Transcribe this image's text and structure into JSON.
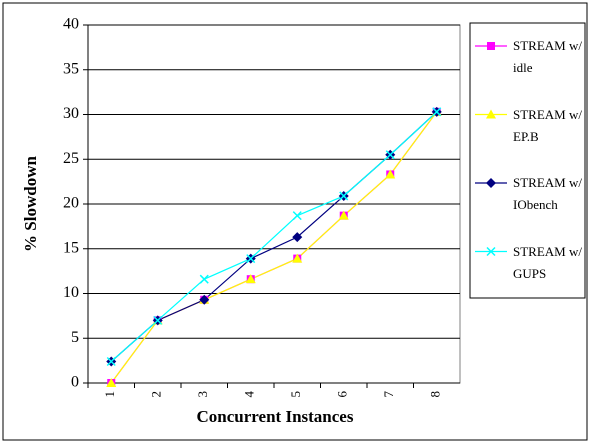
{
  "chart_data": {
    "type": "line",
    "categories": [
      "1",
      "2",
      "3",
      "4",
      "5",
      "6",
      "7",
      "8"
    ],
    "y_label": "% Slowdown",
    "x_label": "Concurrent Instances",
    "ylim": [
      0,
      40
    ],
    "yticks": [
      0,
      5,
      10,
      15,
      20,
      25,
      30,
      35,
      40
    ],
    "grid": true,
    "series": [
      {
        "name": "STREAM w/ idle",
        "color": "#ff00ff",
        "marker": "square",
        "values": [
          0,
          7.0,
          9.3,
          11.6,
          13.9,
          18.7,
          23.3,
          30.3
        ]
      },
      {
        "name": "STREAM w/ EP.B",
        "color": "#ffff00",
        "marker": "triangle",
        "values": [
          0,
          7.0,
          9.3,
          11.6,
          13.9,
          18.7,
          23.3,
          30.3
        ]
      },
      {
        "name": "STREAM w/ IObench",
        "color": "#000080",
        "marker": "diamond",
        "values": [
          2.4,
          7.0,
          9.3,
          13.9,
          16.3,
          20.9,
          25.5,
          30.3
        ]
      },
      {
        "name": "STREAM w/ GUPS",
        "color": "#00ffff",
        "marker": "x",
        "values": [
          2.4,
          7.0,
          11.6,
          13.9,
          18.7,
          20.9,
          25.5,
          30.3
        ]
      }
    ]
  }
}
